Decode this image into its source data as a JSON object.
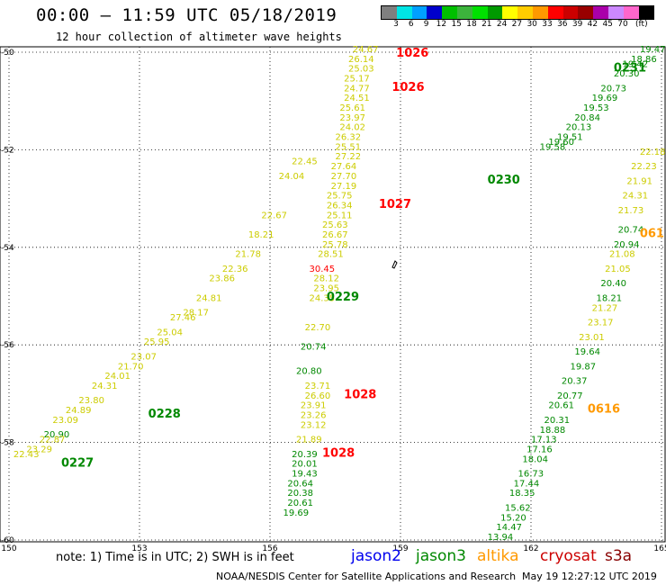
{
  "title": "00:00 – 11:59 UTC 05/18/2019",
  "subtitle": "12 hour collection of altimeter wave heights",
  "colorbar": {
    "labels": [
      "3",
      "6",
      "9",
      "12",
      "15",
      "18",
      "21",
      "24",
      "27",
      "30",
      "33",
      "36",
      "39",
      "42",
      "45",
      "70",
      "(ft)"
    ],
    "colors": [
      "#7f7f7f",
      "#00e5e5",
      "#00a0ff",
      "#0000cc",
      "#00c000",
      "#3cb43c",
      "#00e000",
      "#009900",
      "#ffff00",
      "#ffcc00",
      "#ff9900",
      "#ff0000",
      "#cc0000",
      "#990000",
      "#aa00aa",
      "#cc88ff",
      "#ff66cc",
      "#000000"
    ]
  },
  "axes": {
    "x_ticks": [
      "150",
      "153",
      "156",
      "159",
      "162",
      "165"
    ],
    "y_ticks": [
      "50",
      "52",
      "54",
      "56",
      "58",
      "60"
    ]
  },
  "note": "note: 1) Time is in UTC; 2) SWH is in feet",
  "satellites": [
    {
      "name": "jason2",
      "color": "#0000ee"
    },
    {
      "name": "jason3",
      "color": "#008800"
    },
    {
      "name": "altika",
      "color": "#ff9900"
    },
    {
      "name": "cryosat",
      "color": "#cc0000"
    },
    {
      "name": "s3a",
      "color": "#880000"
    }
  ],
  "credit": "NOAA/NESDIS Center for Satellite Applications and Research",
  "timestamp": "May 19 12:27:12 UTC 2019",
  "chart_data": {
    "type": "scatter",
    "xlim": [
      150,
      165
    ],
    "ylim": [
      60,
      50
    ],
    "grid": true,
    "time_labels": [
      {
        "text": "1026",
        "lon": 158.9,
        "lat": 50.0,
        "color": "#ff0000"
      },
      {
        "text": "1026",
        "lon": 158.8,
        "lat": 50.7,
        "color": "#ff0000"
      },
      {
        "text": "1027",
        "lon": 158.5,
        "lat": 53.1,
        "color": "#ff0000"
      },
      {
        "text": "1028",
        "lon": 157.7,
        "lat": 57.0,
        "color": "#ff0000"
      },
      {
        "text": "1028",
        "lon": 157.2,
        "lat": 58.2,
        "color": "#ff0000"
      },
      {
        "text": "0231",
        "lon": 163.9,
        "lat": 50.3,
        "color": "#008800"
      },
      {
        "text": "0230",
        "lon": 161.0,
        "lat": 52.6,
        "color": "#008800"
      },
      {
        "text": "0229",
        "lon": 157.3,
        "lat": 55.0,
        "color": "#008800"
      },
      {
        "text": "0228",
        "lon": 153.2,
        "lat": 57.4,
        "color": "#008800"
      },
      {
        "text": "0227",
        "lon": 151.2,
        "lat": 58.4,
        "color": "#008800"
      },
      {
        "text": "0616",
        "lon": 163.3,
        "lat": 57.3,
        "color": "#ff9900"
      },
      {
        "text": "061",
        "lon": 164.5,
        "lat": 53.7,
        "color": "#ff9900"
      }
    ],
    "tracks": [
      {
        "name": "cryosat-pass-1026",
        "color": "#cccc00",
        "points": [
          [
            "24.67",
            157.9,
            50.0
          ],
          [
            "26.14",
            157.8,
            50.2
          ],
          [
            "25.03",
            157.8,
            50.4
          ],
          [
            "25.17",
            157.7,
            50.6
          ],
          [
            "24.77",
            157.7,
            50.8
          ],
          [
            "24.51",
            157.7,
            51.0
          ],
          [
            "25.61",
            157.6,
            51.2
          ],
          [
            "23.97",
            157.6,
            51.4
          ],
          [
            "24.02",
            157.6,
            51.6
          ],
          [
            "26.32",
            157.5,
            51.8
          ],
          [
            "25.51",
            157.5,
            52.0
          ],
          [
            "27.22",
            157.5,
            52.2
          ],
          [
            "27.64",
            157.4,
            52.4
          ],
          [
            "27.70",
            157.4,
            52.6
          ],
          [
            "27.19",
            157.4,
            52.8
          ],
          [
            "25.75",
            157.3,
            53.0
          ],
          [
            "26.34",
            157.3,
            53.2
          ],
          [
            "25.11",
            157.3,
            53.4
          ],
          [
            "25.63",
            157.2,
            53.6
          ],
          [
            "26.67",
            157.2,
            53.8
          ],
          [
            "25.78",
            157.2,
            54.0
          ],
          [
            "28.51",
            157.1,
            54.2
          ],
          [
            "28.12",
            157.0,
            54.7
          ],
          [
            "23.95",
            157.0,
            54.9
          ],
          [
            "24.35",
            156.9,
            55.1
          ],
          [
            "22.70",
            156.8,
            55.7
          ],
          [
            "23.71",
            156.8,
            56.9
          ],
          [
            "26.60",
            156.8,
            57.1
          ],
          [
            "23.91",
            156.7,
            57.3
          ],
          [
            "23.26",
            156.7,
            57.5
          ],
          [
            "23.12",
            156.7,
            57.7
          ],
          [
            "21.89",
            156.6,
            58.0
          ]
        ]
      },
      {
        "name": "cryosat-pass-1026-red",
        "color": "#ff0000",
        "points": [
          [
            "30.45",
            156.9,
            54.5
          ]
        ]
      },
      {
        "name": "jason3-pass-0227",
        "color": "#008800",
        "points": [
          [
            "20.90",
            150.8,
            57.9
          ],
          [
            "20.74",
            156.7,
            56.1
          ],
          [
            "20.80",
            156.6,
            56.6
          ],
          [
            "20.39",
            156.5,
            58.3
          ],
          [
            "20.01",
            156.5,
            58.5
          ],
          [
            "19.43",
            156.5,
            58.7
          ],
          [
            "20.64",
            156.4,
            58.9
          ],
          [
            "20.38",
            156.4,
            59.1
          ],
          [
            "20.61",
            156.4,
            59.3
          ],
          [
            "19.69",
            156.3,
            59.5
          ]
        ]
      },
      {
        "name": "altika-ascending",
        "color": "#cccc00",
        "points": [
          [
            "22.43",
            150.1,
            58.3
          ],
          [
            "23.29",
            150.4,
            58.2
          ],
          [
            "22.87",
            150.7,
            58.0
          ],
          [
            "23.09",
            151.0,
            57.6
          ],
          [
            "24.89",
            151.3,
            57.4
          ],
          [
            "23.80",
            151.6,
            57.2
          ],
          [
            "24.31",
            151.9,
            56.9
          ],
          [
            "24.01",
            152.2,
            56.7
          ],
          [
            "21.70",
            152.5,
            56.5
          ],
          [
            "23.07",
            152.8,
            56.3
          ],
          [
            "25.95",
            153.1,
            56.0
          ],
          [
            "25.04",
            153.4,
            55.8
          ],
          [
            "27.46",
            153.7,
            55.5
          ],
          [
            "28.17",
            154.0,
            55.4
          ],
          [
            "24.81",
            154.3,
            55.1
          ],
          [
            "23.86",
            154.6,
            54.7
          ],
          [
            "22.36",
            154.9,
            54.5
          ],
          [
            "21.78",
            155.2,
            54.2
          ],
          [
            "18.21",
            155.5,
            53.8
          ],
          [
            "22.67",
            155.8,
            53.4
          ],
          [
            "24.04",
            156.2,
            52.6
          ],
          [
            "22.45",
            156.5,
            52.3
          ]
        ]
      },
      {
        "name": "jason3-pass-0231",
        "color": "#008800",
        "points": [
          [
            "19.47",
            164.5,
            50.0
          ],
          [
            "18.86",
            164.3,
            50.2
          ],
          [
            "19.42",
            164.1,
            50.3
          ],
          [
            "20.30",
            163.9,
            50.5
          ],
          [
            "20.73",
            163.6,
            50.8
          ],
          [
            "19.69",
            163.4,
            51.0
          ],
          [
            "19.53",
            163.2,
            51.2
          ],
          [
            "20.84",
            163.0,
            51.4
          ],
          [
            "20.13",
            162.8,
            51.6
          ],
          [
            "19.51",
            162.6,
            51.8
          ],
          [
            "19.60",
            162.4,
            51.9
          ],
          [
            "19.58",
            162.2,
            52.0
          ]
        ]
      },
      {
        "name": "altika-0616",
        "color": "#cccc00",
        "points": [
          [
            "22.18",
            164.5,
            52.1
          ],
          [
            "22.23",
            164.3,
            52.4
          ],
          [
            "21.91",
            164.2,
            52.7
          ],
          [
            "24.31",
            164.1,
            53.0
          ],
          [
            "21.73",
            164.0,
            53.3
          ],
          [
            "21.08",
            163.8,
            54.2
          ],
          [
            "21.05",
            163.7,
            54.5
          ],
          [
            "21.27",
            163.4,
            55.3
          ],
          [
            "23.17",
            163.3,
            55.6
          ],
          [
            "23.01",
            163.1,
            55.9
          ]
        ]
      },
      {
        "name": "jason3-pass-0616",
        "color": "#008800",
        "points": [
          [
            "20.74",
            164.0,
            53.7
          ],
          [
            "20.94",
            163.9,
            54.0
          ],
          [
            "20.40",
            163.6,
            54.8
          ],
          [
            "18.21",
            163.5,
            55.1
          ],
          [
            "19.64",
            163.0,
            56.2
          ],
          [
            "19.87",
            162.9,
            56.5
          ],
          [
            "20.37",
            162.7,
            56.8
          ],
          [
            "20.77",
            162.6,
            57.1
          ],
          [
            "20.61",
            162.4,
            57.3
          ],
          [
            "20.31",
            162.3,
            57.6
          ],
          [
            "18.88",
            162.2,
            57.8
          ],
          [
            "17.13",
            162.0,
            58.0
          ],
          [
            "17.16",
            161.9,
            58.2
          ],
          [
            "18.04",
            161.8,
            58.4
          ],
          [
            "16.73",
            161.7,
            58.7
          ],
          [
            "17.44",
            161.6,
            58.9
          ],
          [
            "18.35",
            161.5,
            59.1
          ],
          [
            "15.62",
            161.4,
            59.4
          ],
          [
            "15.20",
            161.3,
            59.6
          ],
          [
            "14.47",
            161.2,
            59.8
          ],
          [
            "13.94",
            161.0,
            60.0
          ]
        ]
      }
    ]
  }
}
